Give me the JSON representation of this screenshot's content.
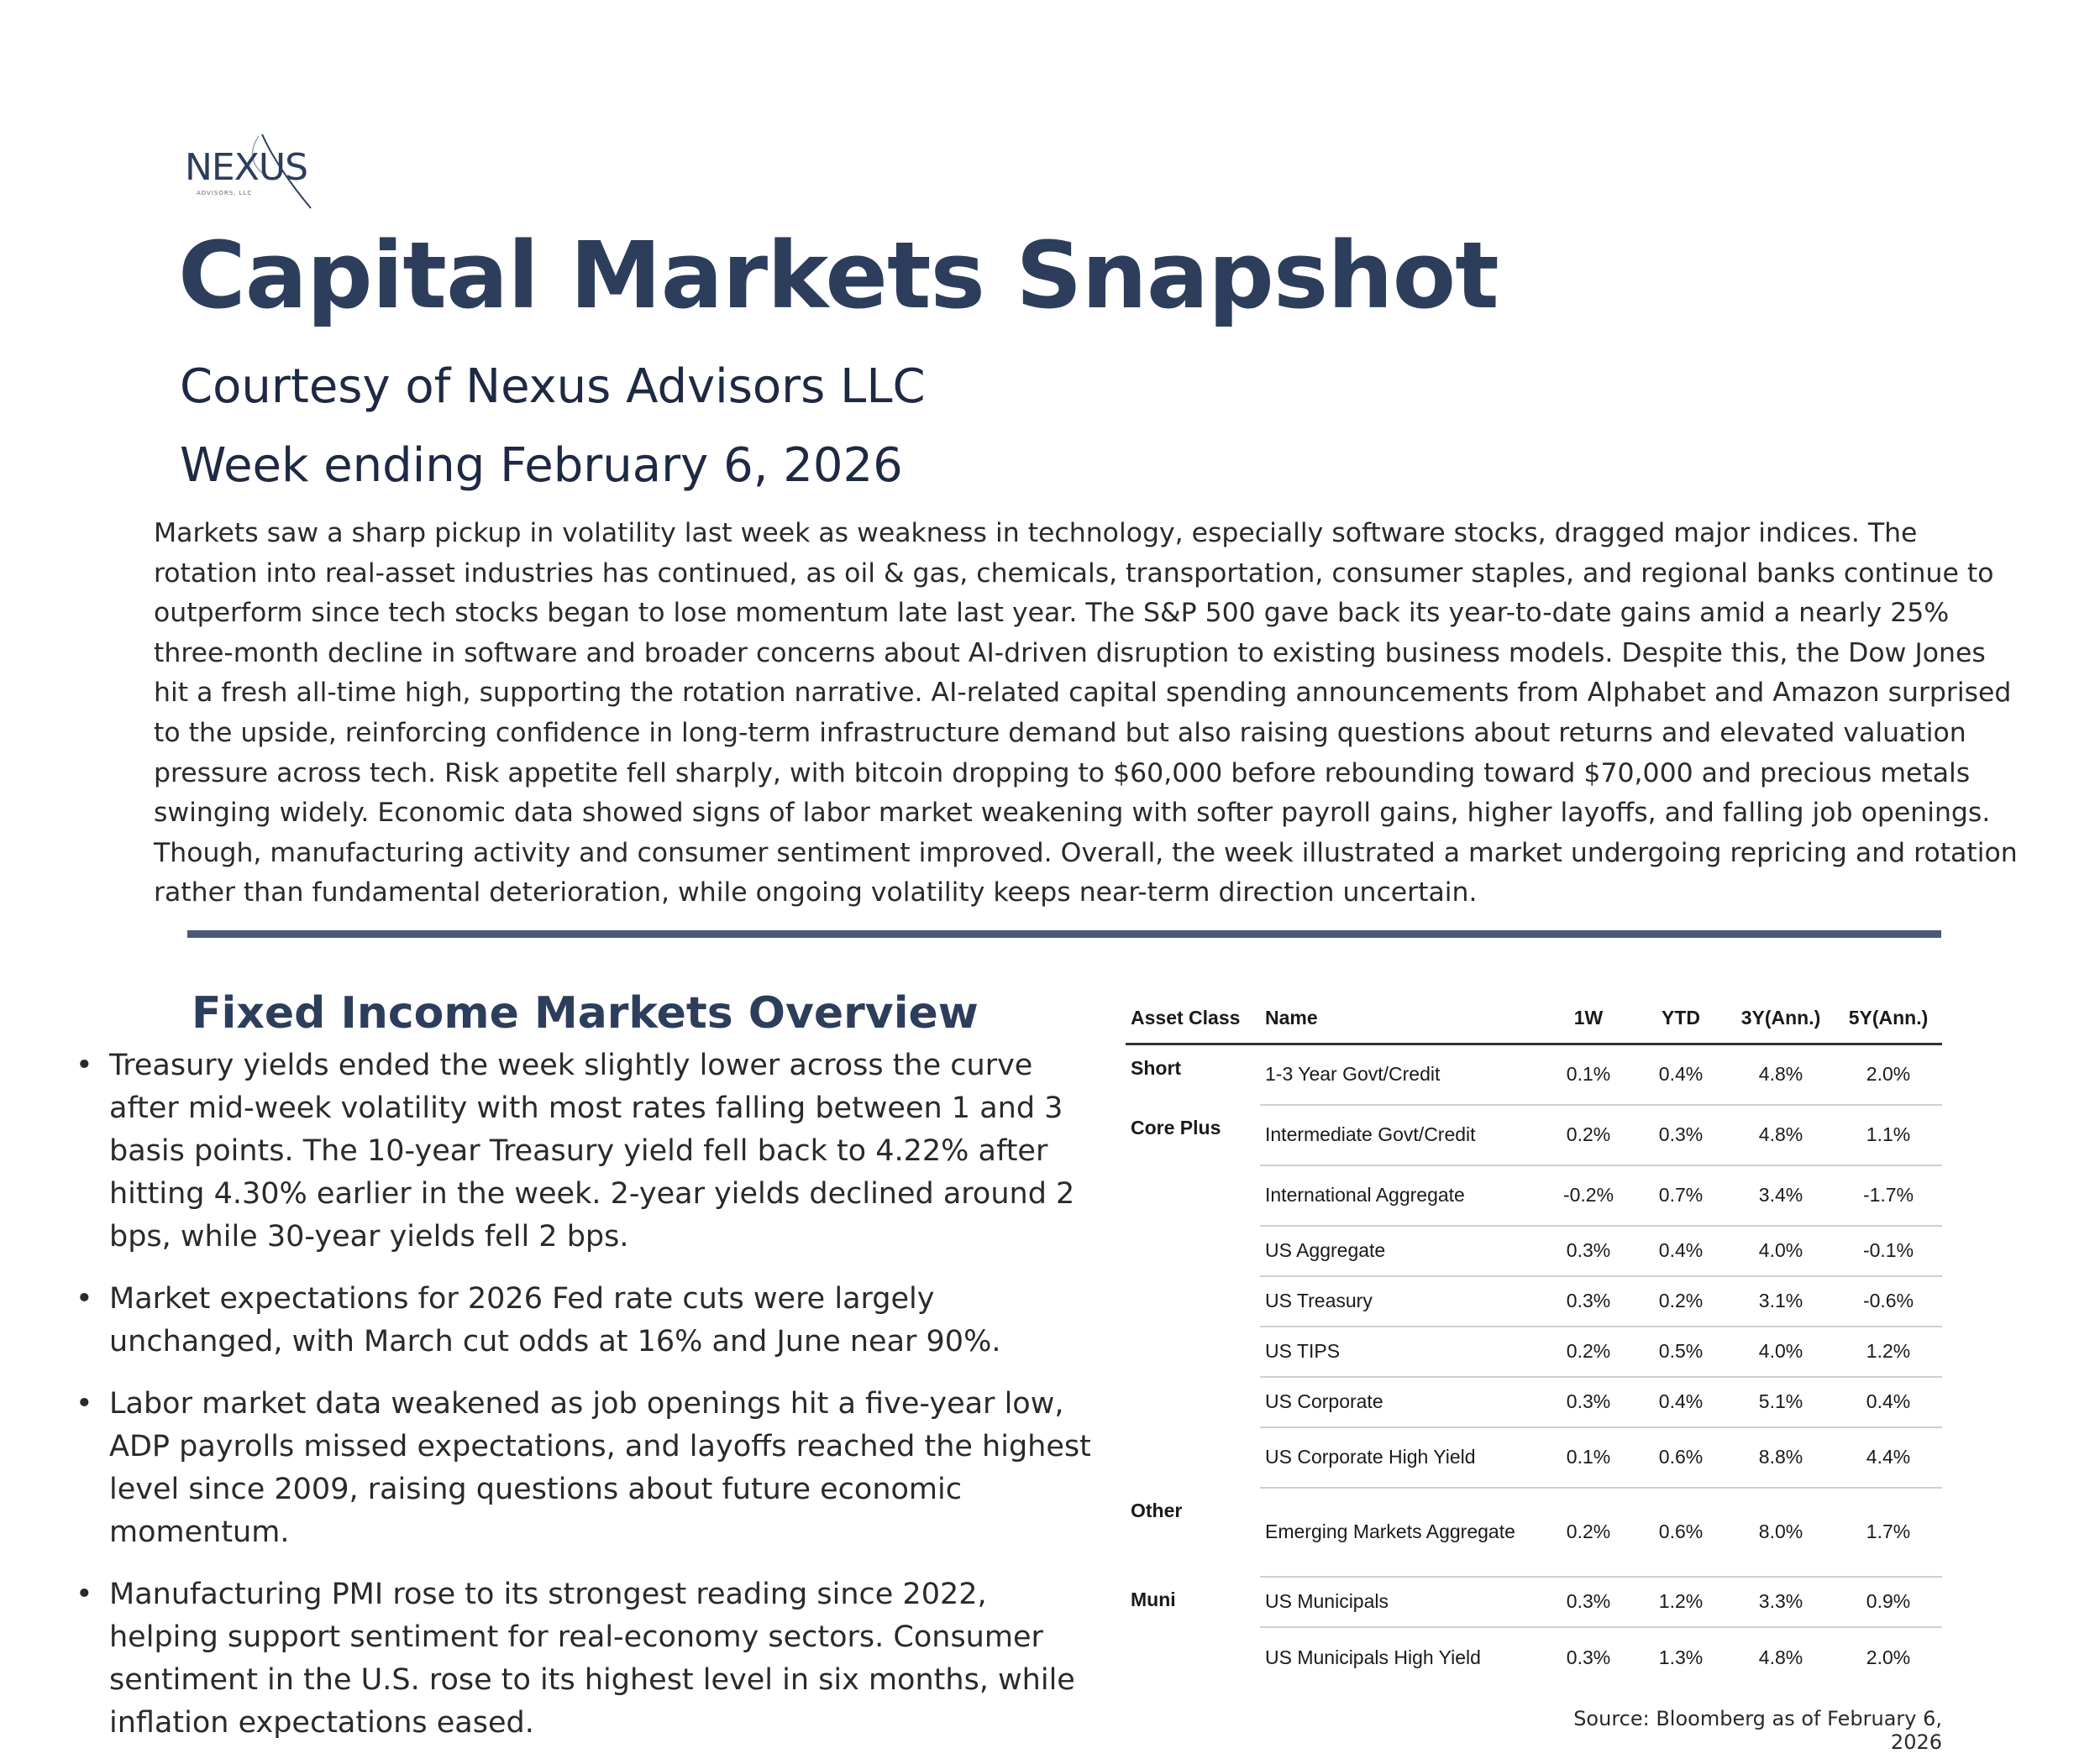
{
  "logo": {
    "name": "NEXUS",
    "sub": "ADVISORS, LLC"
  },
  "header": {
    "title": "Capital Markets Snapshot",
    "subtitle": "Courtesy of Nexus Advisors LLC",
    "week": "Week ending February 6, 2026"
  },
  "intro": "Markets saw a sharp pickup in volatility last week as weakness in technology, especially software stocks, dragged major indices.  The rotation into real-asset industries has continued, as oil & gas, chemicals, transportation, consumer staples, and regional banks continue to outperform since tech stocks began to lose momentum late last year. The S&P 500 gave back its year-to-date gains amid a nearly 25% three-month decline in software and broader concerns about AI-driven disruption to existing business models. Despite this, the Dow Jones hit a fresh all-time high, supporting the rotation narrative. AI-related capital spending announcements from Alphabet and Amazon surprised to the upside, reinforcing confidence in long-term infrastructure demand but also raising questions about returns and elevated valuation pressure across tech. Risk appetite fell sharply, with bitcoin dropping to $60,000 before rebounding toward $70,000 and precious metals swinging widely. Economic data showed signs of labor market weakening with softer payroll gains, higher layoffs, and falling job openings.  Though, manufacturing activity and consumer sentiment improved. Overall, the week illustrated a market undergoing repricing and rotation rather than fundamental deterioration, while ongoing volatility keeps near-term direction uncertain.",
  "fixed_income": {
    "title": "Fixed Income Markets Overview",
    "bullets": [
      "Treasury yields ended the week slightly lower across the curve after mid-week volatility with most rates falling between 1 and 3 basis points.  The 10-year Treasury yield fell back to 4.22% after hitting 4.30% earlier in the week. 2-year yields declined around 2 bps, while 30-year yields fell 2 bps.",
      "Market expectations for 2026 Fed rate cuts were largely unchanged, with March cut odds at 16% and June near 90%.",
      "Labor market data weakened as job openings hit a five-year low, ADP payrolls missed expectations, and layoffs reached the highest level since 2009, raising questions about future economic momentum.",
      "Manufacturing PMI rose to its strongest reading since 2022, helping support sentiment for real-economy sectors.  Consumer sentiment in the U.S. rose to its highest level in six months, while inflation expectations eased."
    ]
  },
  "table": {
    "headers": [
      "Asset Class",
      "Name",
      "1W",
      "YTD",
      "3Y(Ann.)",
      "5Y(Ann.)"
    ],
    "rows": [
      {
        "cls": "Short",
        "name": "1-3 Year Govt/Credit",
        "w1": "0.1%",
        "ytd": "0.4%",
        "y3": "4.8%",
        "y5": "2.0%"
      },
      {
        "cls": "Core Plus",
        "name": "Intermediate Govt/Credit",
        "w1": "0.2%",
        "ytd": "0.3%",
        "y3": "4.8%",
        "y5": "1.1%"
      },
      {
        "cls": "",
        "name": "International Aggregate",
        "w1": "-0.2%",
        "ytd": "0.7%",
        "y3": "3.4%",
        "y5": "-1.7%"
      },
      {
        "cls": "",
        "name": "US Aggregate",
        "w1": "0.3%",
        "ytd": "0.4%",
        "y3": "4.0%",
        "y5": "-0.1%"
      },
      {
        "cls": "",
        "name": "US Treasury",
        "w1": "0.3%",
        "ytd": "0.2%",
        "y3": "3.1%",
        "y5": "-0.6%"
      },
      {
        "cls": "",
        "name": "US TIPS",
        "w1": "0.2%",
        "ytd": "0.5%",
        "y3": "4.0%",
        "y5": "1.2%"
      },
      {
        "cls": "",
        "name": "US Corporate",
        "w1": "0.3%",
        "ytd": "0.4%",
        "y3": "5.1%",
        "y5": "0.4%"
      },
      {
        "cls": "",
        "name": "US Corporate High Yield",
        "w1": "0.1%",
        "ytd": "0.6%",
        "y3": "8.8%",
        "y5": "4.4%"
      },
      {
        "cls": "Other",
        "name": "Emerging Markets Aggregate",
        "w1": "0.2%",
        "ytd": "0.6%",
        "y3": "8.0%",
        "y5": "1.7%"
      },
      {
        "cls": "Muni",
        "name": "US Municipals",
        "w1": "0.3%",
        "ytd": "1.2%",
        "y3": "3.3%",
        "y5": "0.9%"
      },
      {
        "cls": "",
        "name": "US Municipals High Yield",
        "w1": "0.3%",
        "ytd": "1.3%",
        "y3": "4.8%",
        "y5": "2.0%"
      }
    ],
    "source": "Source: Bloomberg as of February 6, 2026"
  },
  "colors": {
    "brand_navy": "#2d3e5c",
    "divider": "#4a5b78"
  }
}
